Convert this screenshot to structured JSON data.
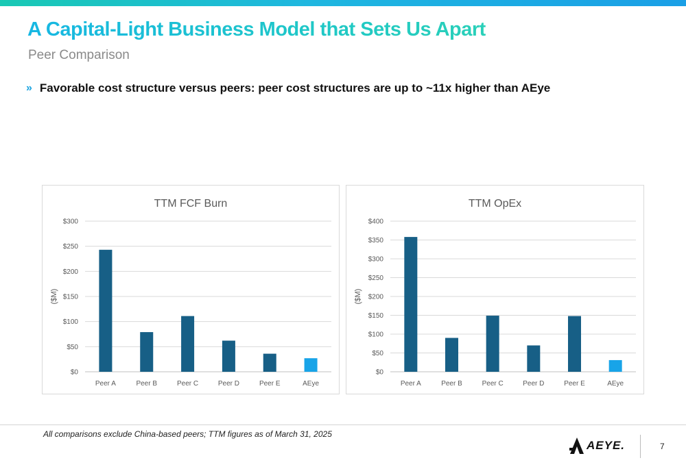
{
  "header": {
    "title": "A Capital-Light Business Model that Sets Us Apart",
    "subtitle": "Peer Comparison"
  },
  "bullet": {
    "marker": "»",
    "text": "Favorable cost structure versus peers: peer cost structures are up to ~11x higher than AEye"
  },
  "chart_data": [
    {
      "type": "bar",
      "title": "TTM FCF Burn",
      "xlabel": "",
      "ylabel": "($M)",
      "categories": [
        "Peer A",
        "Peer B",
        "Peer C",
        "Peer D",
        "Peer E",
        "AEye"
      ],
      "values": [
        243,
        79,
        111,
        62,
        36,
        27
      ],
      "ylim": [
        0,
        300
      ],
      "yticks": [
        0,
        50,
        100,
        150,
        200,
        250,
        300
      ],
      "ytick_labels": [
        "$0",
        "$50",
        "$100",
        "$150",
        "$200",
        "$250",
        "$300"
      ],
      "bar_colors": [
        "#175f86",
        "#175f86",
        "#175f86",
        "#175f86",
        "#175f86",
        "#18a4e8"
      ],
      "grid": true,
      "legend": "none"
    },
    {
      "type": "bar",
      "title": "TTM OpEx",
      "xlabel": "",
      "ylabel": "($M)",
      "categories": [
        "Peer A",
        "Peer B",
        "Peer C",
        "Peer D",
        "Peer E",
        "AEye"
      ],
      "values": [
        358,
        90,
        149,
        70,
        148,
        31
      ],
      "ylim": [
        0,
        400
      ],
      "yticks": [
        0,
        50,
        100,
        150,
        200,
        250,
        300,
        350,
        400
      ],
      "ytick_labels": [
        "$0",
        "$50",
        "$100",
        "$150",
        "$200",
        "$250",
        "$300",
        "$350",
        "$400"
      ],
      "bar_colors": [
        "#175f86",
        "#175f86",
        "#175f86",
        "#175f86",
        "#175f86",
        "#18a4e8"
      ],
      "grid": true,
      "legend": "none"
    }
  ],
  "footer": {
    "note": "All comparisons exclude China-based peers; TTM figures as of March 31, 2025",
    "logo_text": "AEYE.",
    "page_number": "7"
  },
  "colors": {
    "bar_peer": "#175f86",
    "bar_aeye": "#18a4e8",
    "accent": "#1aa3e0",
    "gridline": "#d9d9d9"
  },
  "icons": {
    "logo": "aeye-logo-icon"
  }
}
